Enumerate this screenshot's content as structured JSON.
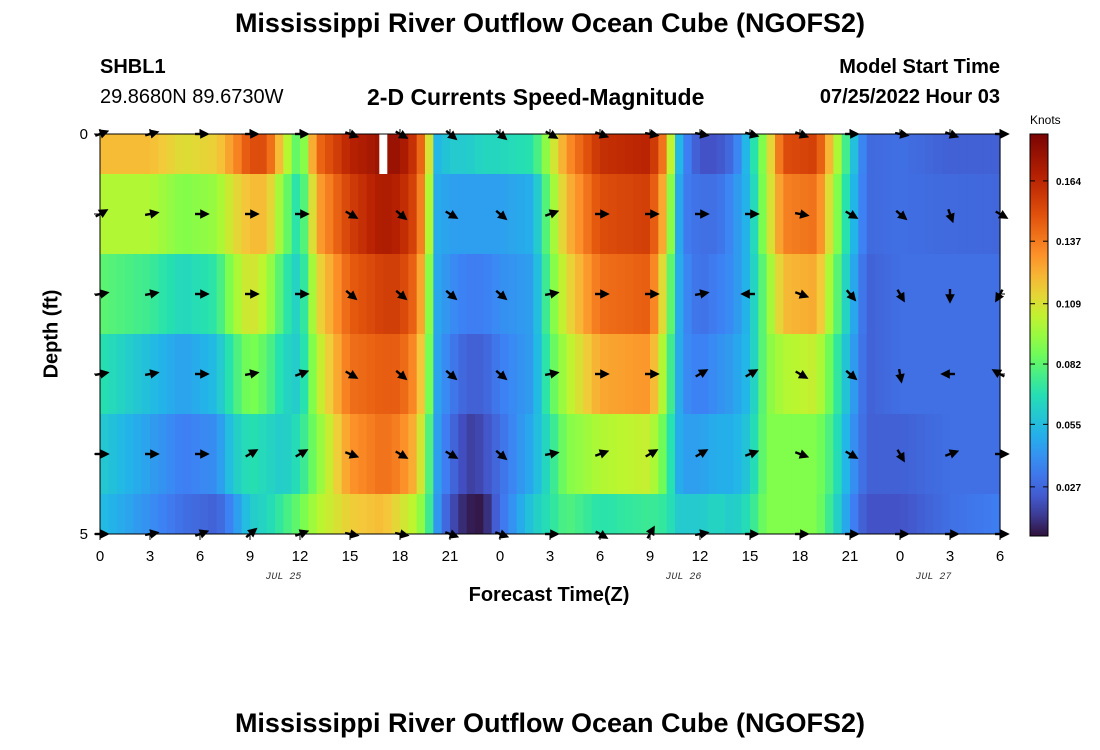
{
  "header": {
    "title": "Mississippi River Outflow Ocean Cube (NGOFS2)",
    "station_id": "SHBL1",
    "station_coords": "29.8680N  89.6730W",
    "plot_title": "2-D Currents Speed-Magnitude",
    "start_label": "Model Start Time",
    "start_value": "07/25/2022 Hour 03"
  },
  "footer": {
    "title": "Mississippi River Outflow Ocean Cube (NGOFS2)"
  },
  "chart_data": {
    "type": "heatmap",
    "title": "2-D Currents Speed-Magnitude",
    "xlabel": "Forecast Time(Z)",
    "ylabel": "Depth (ft)",
    "x_hours": [
      0,
      54
    ],
    "xticks": [
      0,
      3,
      6,
      9,
      12,
      15,
      18,
      21,
      24,
      27,
      30,
      33,
      36,
      39,
      42,
      45,
      48,
      51,
      54
    ],
    "xtick_labels": [
      "0",
      "3",
      "6",
      "9",
      "12",
      "15",
      "18",
      "21",
      "0",
      "3",
      "6",
      "9",
      "12",
      "15",
      "18",
      "21",
      "0",
      "3",
      "6"
    ],
    "date_labels": [
      {
        "hour": 11,
        "text": "JUL 25"
      },
      {
        "hour": 35,
        "text": "JUL 26"
      },
      {
        "hour": 50,
        "text": "JUL 27"
      }
    ],
    "ylim": [
      0,
      5
    ],
    "yticks": [
      0,
      1,
      2,
      3,
      4,
      5
    ],
    "ytick_labels": [
      "0",
      "",
      "",
      "",
      "",
      "5"
    ],
    "layers": [
      "0.0-0.5",
      "0.5-1.5",
      "1.5-2.5",
      "2.5-3.5",
      "3.5-4.5",
      "4.5-5.0"
    ],
    "colorbar": {
      "units": "Knots",
      "vmin": 0.005,
      "vmax": 0.185,
      "ticks": [
        0.027,
        0.055,
        0.082,
        0.109,
        0.137,
        0.164
      ],
      "tick_labels": [
        "0.027",
        "0.055",
        "0.082",
        "0.109",
        "0.137",
        "0.164"
      ]
    },
    "speed_keyframes": [
      {
        "h": 0,
        "v": [
          0.12,
          0.1,
          0.082,
          0.07,
          0.06,
          0.055
        ]
      },
      {
        "h": 3,
        "v": [
          0.12,
          0.1,
          0.075,
          0.055,
          0.045,
          0.04
        ]
      },
      {
        "h": 5,
        "v": [
          0.11,
          0.09,
          0.065,
          0.045,
          0.035,
          0.03
        ]
      },
      {
        "h": 7,
        "v": [
          0.115,
          0.095,
          0.072,
          0.055,
          0.04,
          0.025
        ]
      },
      {
        "h": 8,
        "v": [
          0.13,
          0.11,
          0.095,
          0.075,
          0.06,
          0.04
        ]
      },
      {
        "h": 9,
        "v": [
          0.15,
          0.12,
          0.11,
          0.09,
          0.07,
          0.06
        ]
      },
      {
        "h": 10,
        "v": [
          0.15,
          0.12,
          0.1,
          0.082,
          0.065,
          0.065
        ]
      },
      {
        "h": 11,
        "v": [
          0.11,
          0.09,
          0.075,
          0.065,
          0.06,
          0.075
        ]
      },
      {
        "h": 12,
        "v": [
          0.075,
          0.065,
          0.06,
          0.06,
          0.07,
          0.085
        ]
      },
      {
        "h": 13,
        "v": [
          0.14,
          0.125,
          0.11,
          0.1,
          0.09,
          0.1
        ]
      },
      {
        "h": 15,
        "v": [
          0.165,
          0.155,
          0.145,
          0.14,
          0.13,
          0.115
        ]
      },
      {
        "h": 17,
        "v": [
          0.175,
          0.17,
          0.155,
          0.145,
          0.14,
          0.12
        ]
      },
      {
        "h": 18,
        "v": [
          0.175,
          0.165,
          0.155,
          0.145,
          0.135,
          0.11
        ]
      },
      {
        "h": 19,
        "v": [
          0.155,
          0.15,
          0.14,
          0.13,
          0.12,
          0.1
        ]
      },
      {
        "h": 19.7,
        "v": [
          0.12,
          0.11,
          0.1,
          0.095,
          0.085,
          0.08
        ]
      },
      {
        "h": 20,
        "v": [
          0.05,
          0.05,
          0.05,
          0.05,
          0.05,
          0.05
        ]
      },
      {
        "h": 21,
        "v": [
          0.06,
          0.045,
          0.04,
          0.035,
          0.03,
          0.02
        ]
      },
      {
        "h": 22,
        "v": [
          0.06,
          0.045,
          0.035,
          0.025,
          0.015,
          0.008
        ]
      },
      {
        "h": 23,
        "v": [
          0.065,
          0.045,
          0.035,
          0.025,
          0.018,
          0.006
        ]
      },
      {
        "h": 24,
        "v": [
          0.065,
          0.045,
          0.04,
          0.035,
          0.03,
          0.03
        ]
      },
      {
        "h": 26,
        "v": [
          0.07,
          0.05,
          0.045,
          0.045,
          0.05,
          0.06
        ]
      },
      {
        "h": 27,
        "v": [
          0.1,
          0.09,
          0.085,
          0.08,
          0.07,
          0.07
        ]
      },
      {
        "h": 28,
        "v": [
          0.13,
          0.12,
          0.11,
          0.1,
          0.09,
          0.08
        ]
      },
      {
        "h": 30,
        "v": [
          0.16,
          0.15,
          0.14,
          0.125,
          0.1,
          0.07
        ]
      },
      {
        "h": 33,
        "v": [
          0.165,
          0.155,
          0.145,
          0.13,
          0.105,
          0.075
        ]
      },
      {
        "h": 34,
        "v": [
          0.13,
          0.115,
          0.1,
          0.09,
          0.08,
          0.072
        ]
      },
      {
        "h": 34.7,
        "v": [
          0.055,
          0.05,
          0.05,
          0.05,
          0.05,
          0.06
        ]
      },
      {
        "h": 35,
        "v": [
          0.04,
          0.035,
          0.04,
          0.04,
          0.045,
          0.06
        ]
      },
      {
        "h": 36,
        "v": [
          0.02,
          0.03,
          0.03,
          0.035,
          0.045,
          0.06
        ]
      },
      {
        "h": 37,
        "v": [
          0.02,
          0.03,
          0.035,
          0.04,
          0.05,
          0.065
        ]
      },
      {
        "h": 38,
        "v": [
          0.03,
          0.04,
          0.04,
          0.045,
          0.05,
          0.06
        ]
      },
      {
        "h": 39,
        "v": [
          0.06,
          0.055,
          0.055,
          0.055,
          0.06,
          0.07
        ]
      },
      {
        "h": 40,
        "v": [
          0.1,
          0.1,
          0.09,
          0.09,
          0.09,
          0.09
        ]
      },
      {
        "h": 41,
        "v": [
          0.15,
          0.135,
          0.12,
          0.1,
          0.09,
          0.09
        ]
      },
      {
        "h": 43,
        "v": [
          0.155,
          0.14,
          0.125,
          0.105,
          0.09,
          0.09
        ]
      },
      {
        "h": 44,
        "v": [
          0.11,
          0.1,
          0.09,
          0.08,
          0.075,
          0.07
        ]
      },
      {
        "h": 45,
        "v": [
          0.065,
          0.06,
          0.055,
          0.05,
          0.045,
          0.04
        ]
      },
      {
        "h": 46,
        "v": [
          0.028,
          0.028,
          0.025,
          0.025,
          0.025,
          0.02
        ]
      },
      {
        "h": 48,
        "v": [
          0.03,
          0.03,
          0.03,
          0.03,
          0.025,
          0.02
        ]
      },
      {
        "h": 51,
        "v": [
          0.025,
          0.028,
          0.03,
          0.03,
          0.03,
          0.03
        ]
      },
      {
        "h": 54,
        "v": [
          0.025,
          0.027,
          0.03,
          0.03,
          0.03,
          0.035
        ]
      }
    ],
    "vector_hours": [
      0,
      3,
      6,
      9,
      12,
      15,
      18,
      21,
      24,
      27,
      30,
      33,
      36,
      39,
      42,
      45,
      48,
      51,
      54
    ],
    "vector_layers": [
      0,
      1,
      2,
      3,
      4,
      5
    ],
    "vector_directions_deg": [
      [
        20,
        15,
        0,
        0,
        0,
        -20,
        -30,
        -40,
        -40,
        -30,
        -20,
        -10,
        -10,
        -15,
        -20,
        0,
        -10,
        -20,
        0
      ],
      [
        30,
        10,
        0,
        0,
        0,
        -30,
        -40,
        -30,
        -40,
        20,
        0,
        0,
        0,
        0,
        -10,
        -30,
        -40,
        -70,
        -30
      ],
      [
        10,
        10,
        0,
        0,
        0,
        -40,
        -40,
        -40,
        -40,
        10,
        0,
        0,
        10,
        180,
        -20,
        -50,
        -60,
        -90,
        -120
      ],
      [
        10,
        10,
        0,
        10,
        20,
        -30,
        -40,
        -40,
        -40,
        10,
        0,
        0,
        30,
        30,
        -30,
        -40,
        -80,
        180,
        150
      ],
      [
        0,
        0,
        0,
        30,
        30,
        -20,
        -30,
        -30,
        -40,
        10,
        20,
        30,
        30,
        20,
        -20,
        -30,
        -60,
        20,
        0
      ],
      [
        0,
        10,
        20,
        40,
        20,
        -10,
        -10,
        -20,
        -20,
        0,
        -30,
        60,
        10,
        0,
        0,
        0,
        0,
        0,
        0
      ]
    ],
    "gaps": [
      {
        "hour": 17,
        "layer": 0
      }
    ]
  }
}
